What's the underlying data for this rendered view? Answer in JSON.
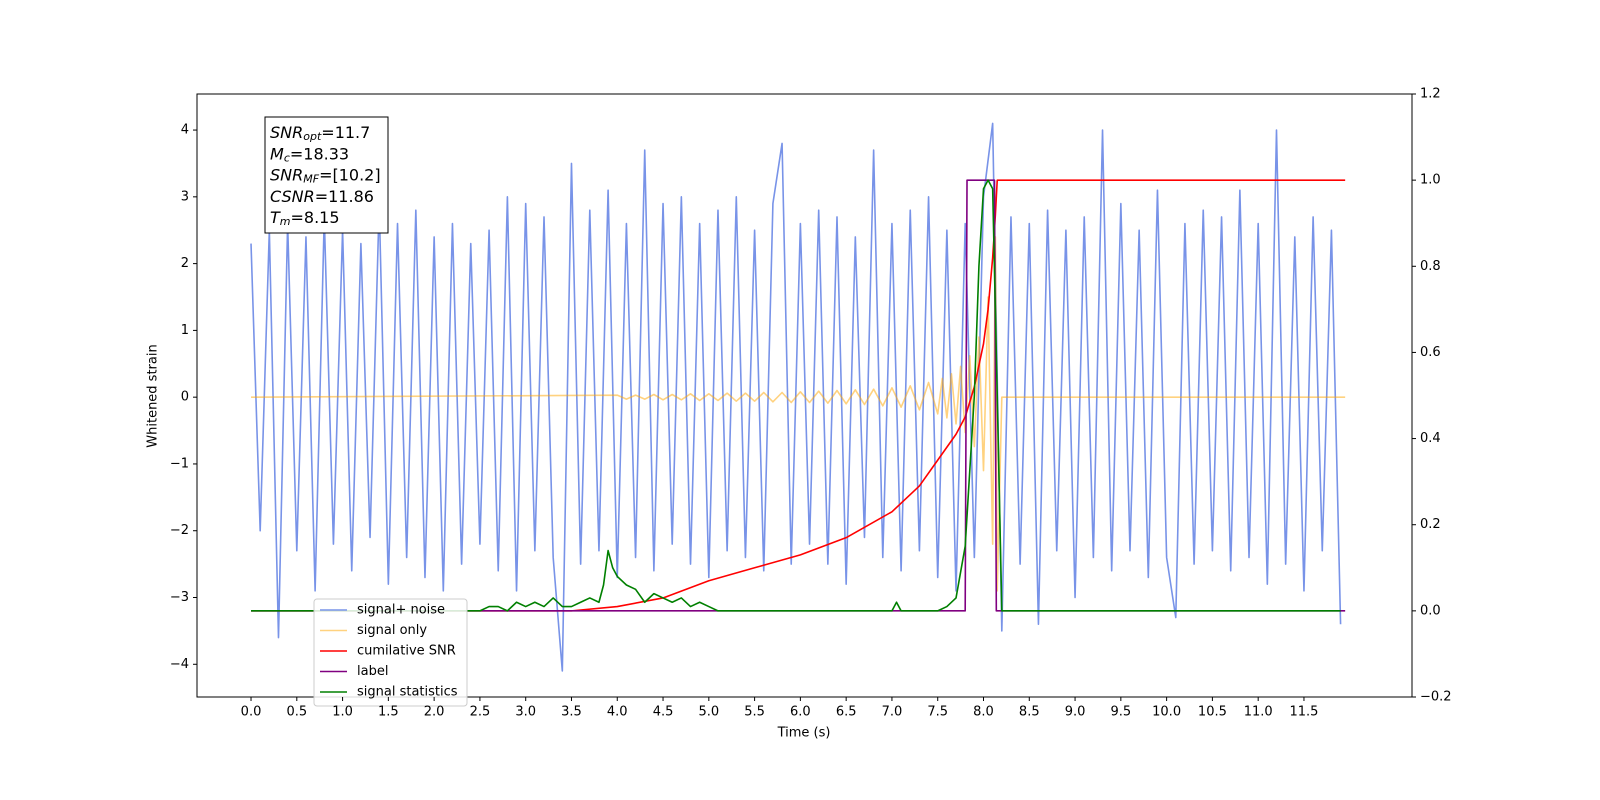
{
  "chart_data": {
    "type": "line",
    "xlabel": "Time (s)",
    "ylabel": "Whitened strain",
    "xlim": [
      -0.59,
      12.68
    ],
    "ylim": [
      -4.49,
      4.54
    ],
    "y2lim": [
      -0.2,
      1.2
    ],
    "xticks": [
      {
        "value": 0,
        "label": "0.0"
      },
      0.5,
      {
        "value": 1,
        "label": "1.0"
      },
      1.5,
      {
        "value": 2,
        "label": "2.0"
      },
      2.5,
      {
        "value": 3,
        "label": "3.0"
      },
      3.5,
      {
        "value": 4,
        "label": "4.0"
      },
      4.5,
      {
        "value": 5,
        "label": "5.0"
      },
      5.5,
      {
        "value": 6,
        "label": "6.0"
      },
      6.5,
      {
        "value": 7,
        "label": "7.0"
      },
      7.5,
      {
        "value": 8,
        "label": "8.0"
      },
      8.5,
      {
        "value": 9,
        "label": "9.0"
      },
      9.5,
      {
        "value": 10,
        "label": "10.0"
      },
      10.5,
      {
        "value": 11,
        "label": "11.0"
      },
      11.5
    ],
    "yticks": [
      {
        "value": -4,
        "label": "−4"
      },
      {
        "value": -3,
        "label": "−3"
      },
      {
        "value": -2,
        "label": "−2"
      },
      {
        "value": -1,
        "label": "−1"
      },
      0,
      1,
      2,
      3,
      4
    ],
    "y2ticks": [
      {
        "value": -0.2,
        "label": "−0.2"
      },
      {
        "value": 0,
        "label": "0.0"
      },
      0.2,
      0.4,
      0.6,
      0.8,
      {
        "value": 1,
        "label": "1.0"
      },
      1.2
    ],
    "annotations": [
      {
        "symbol": "SNR",
        "sub": "opt",
        "text": "=11.7"
      },
      {
        "symbol": "M",
        "sub": "c",
        "text": "=18.33"
      },
      {
        "symbol": "SNR",
        "sub": "MF",
        "text": "=[10.2]"
      },
      {
        "symbol": "CSNR",
        "text": "=11.86"
      },
      {
        "symbol": "T",
        "sub": "m",
        "text": "=8.15"
      }
    ],
    "legend": "lower left",
    "series": [
      {
        "name": "signal+ noise",
        "color": "#7893e8",
        "x": [
          0.0,
          0.1,
          0.2,
          0.3,
          0.4,
          0.5,
          0.6,
          0.7,
          0.8,
          0.9,
          1.0,
          1.1,
          1.2,
          1.3,
          1.4,
          1.5,
          1.6,
          1.7,
          1.8,
          1.9,
          2.0,
          2.1,
          2.2,
          2.3,
          2.4,
          2.5,
          2.6,
          2.7,
          2.8,
          2.9,
          3.0,
          3.1,
          3.2,
          3.3,
          3.4,
          3.5,
          3.6,
          3.7,
          3.8,
          3.9,
          4.0,
          4.1,
          4.2,
          4.3,
          4.4,
          4.5,
          4.6,
          4.7,
          4.8,
          4.9,
          5.0,
          5.1,
          5.2,
          5.3,
          5.4,
          5.5,
          5.6,
          5.7,
          5.8,
          5.9,
          6.0,
          6.1,
          6.2,
          6.3,
          6.4,
          6.5,
          6.6,
          6.7,
          6.8,
          6.9,
          7.0,
          7.1,
          7.2,
          7.3,
          7.4,
          7.5,
          7.6,
          7.7,
          7.8,
          7.9,
          8.0,
          8.1,
          8.2,
          8.3,
          8.4,
          8.5,
          8.6,
          8.7,
          8.8,
          8.9,
          9.0,
          9.1,
          9.2,
          9.3,
          9.4,
          9.5,
          9.6,
          9.7,
          9.8,
          9.9,
          10.0,
          10.1,
          10.2,
          10.3,
          10.4,
          10.5,
          10.6,
          10.7,
          10.8,
          10.9,
          11.0,
          11.1,
          11.2,
          11.3,
          11.4,
          11.5,
          11.6,
          11.7,
          11.8,
          11.9
        ],
        "values": [
          2.3,
          -2.0,
          2.5,
          -3.6,
          2.6,
          -2.3,
          2.4,
          -2.9,
          2.7,
          -2.2,
          2.5,
          -2.6,
          2.3,
          -2.1,
          2.9,
          -2.8,
          2.6,
          -2.4,
          2.8,
          -2.7,
          2.4,
          -2.9,
          2.6,
          -2.5,
          2.3,
          -2.2,
          2.5,
          -2.6,
          3.0,
          -2.9,
          2.9,
          -2.3,
          2.7,
          -2.4,
          -4.1,
          3.5,
          -2.5,
          2.8,
          -2.3,
          3.1,
          -2.7,
          2.6,
          -2.4,
          3.7,
          -2.6,
          2.9,
          -2.2,
          3.0,
          -2.5,
          2.6,
          -2.7,
          2.8,
          -2.3,
          3.0,
          -2.4,
          2.5,
          -2.6,
          2.9,
          3.8,
          -2.5,
          2.6,
          -2.2,
          2.8,
          -2.5,
          2.7,
          -2.8,
          2.4,
          -2.1,
          3.7,
          -2.4,
          2.6,
          -2.6,
          2.8,
          -2.3,
          3.0,
          -2.7,
          2.5,
          -2.9,
          2.6,
          -2.4,
          3.0,
          4.1,
          -3.5,
          2.7,
          -2.5,
          2.6,
          -3.4,
          2.8,
          -2.3,
          2.5,
          -3.0,
          2.7,
          -2.4,
          4.0,
          -2.6,
          2.9,
          -2.3,
          2.5,
          -2.7,
          3.1,
          -2.4,
          -3.3,
          2.6,
          -2.5,
          2.8,
          -2.3,
          2.7,
          -2.6,
          3.1,
          -2.4,
          2.6,
          -2.8,
          4.0,
          -2.5,
          2.4,
          -2.9,
          2.7,
          -2.3,
          2.5,
          -3.4
        ]
      },
      {
        "name": "signal only",
        "color": "#ffa500",
        "x": [
          0.0,
          4.0,
          4.1,
          4.2,
          4.3,
          4.4,
          4.5,
          4.6,
          4.7,
          4.8,
          4.9,
          5.0,
          5.1,
          5.2,
          5.3,
          5.4,
          5.5,
          5.6,
          5.7,
          5.8,
          5.9,
          6.0,
          6.1,
          6.2,
          6.3,
          6.4,
          6.5,
          6.6,
          6.7,
          6.8,
          6.9,
          7.0,
          7.1,
          7.2,
          7.3,
          7.4,
          7.5,
          7.55,
          7.6,
          7.65,
          7.7,
          7.75,
          7.8,
          7.85,
          7.9,
          7.95,
          8.0,
          8.05,
          8.1,
          8.13,
          8.15,
          8.2,
          11.95
        ],
        "values": [
          0,
          0.03,
          -0.03,
          0.03,
          -0.03,
          0.04,
          -0.04,
          0.04,
          -0.04,
          0.05,
          -0.05,
          0.05,
          -0.05,
          0.06,
          -0.06,
          0.06,
          -0.06,
          0.07,
          -0.07,
          0.07,
          -0.08,
          0.08,
          -0.08,
          0.09,
          -0.09,
          0.1,
          -0.1,
          0.11,
          -0.11,
          0.12,
          -0.13,
          0.14,
          -0.15,
          0.17,
          -0.19,
          0.22,
          -0.25,
          0.28,
          -0.31,
          0.35,
          -0.4,
          0.46,
          -0.53,
          0.62,
          -0.74,
          0.9,
          -1.1,
          1.5,
          -2.2,
          2.4,
          -2.9,
          0,
          0
        ]
      },
      {
        "name": "cumilative SNR",
        "color": "#ff0000",
        "axis": "y2",
        "x": [
          0,
          3.5,
          4.0,
          4.5,
          5.0,
          5.5,
          6.0,
          6.5,
          7.0,
          7.3,
          7.5,
          7.7,
          7.8,
          7.9,
          8.0,
          8.05,
          8.1,
          8.13,
          8.15,
          11.95
        ],
        "values": [
          0,
          0,
          0.01,
          0.03,
          0.07,
          0.1,
          0.13,
          0.17,
          0.23,
          0.29,
          0.35,
          0.41,
          0.45,
          0.52,
          0.62,
          0.7,
          0.82,
          0.92,
          1.0,
          1.0
        ]
      },
      {
        "name": "label",
        "color": "#800080",
        "axis": "y2",
        "x": [
          0,
          7.8,
          7.82,
          8.12,
          8.14,
          11.95
        ],
        "values": [
          0,
          0,
          1,
          1,
          0,
          0
        ]
      },
      {
        "name": "signal statistics",
        "color": "#008000",
        "axis": "y2",
        "x": [
          0,
          2.5,
          2.6,
          2.7,
          2.8,
          2.9,
          3.0,
          3.1,
          3.2,
          3.3,
          3.4,
          3.5,
          3.6,
          3.7,
          3.8,
          3.85,
          3.9,
          3.95,
          4.0,
          4.1,
          4.2,
          4.3,
          4.4,
          4.5,
          4.6,
          4.7,
          4.8,
          4.9,
          5.0,
          5.1,
          5.2,
          5.5,
          7.0,
          7.05,
          7.1,
          7.5,
          7.6,
          7.7,
          7.8,
          7.9,
          7.95,
          8.0,
          8.05,
          8.1,
          8.15,
          8.2,
          11.9
        ],
        "values": [
          0,
          0,
          0.01,
          0.01,
          0.0,
          0.02,
          0.01,
          0.02,
          0.01,
          0.03,
          0.01,
          0.01,
          0.02,
          0.03,
          0.02,
          0.06,
          0.14,
          0.1,
          0.08,
          0.06,
          0.05,
          0.02,
          0.04,
          0.03,
          0.02,
          0.03,
          0.01,
          0.02,
          0.01,
          0.0,
          0.0,
          0.0,
          0.0,
          0.02,
          0.0,
          0.0,
          0.01,
          0.03,
          0.15,
          0.5,
          0.8,
          0.98,
          1.0,
          0.98,
          0.5,
          0.0,
          0.0
        ]
      }
    ]
  }
}
